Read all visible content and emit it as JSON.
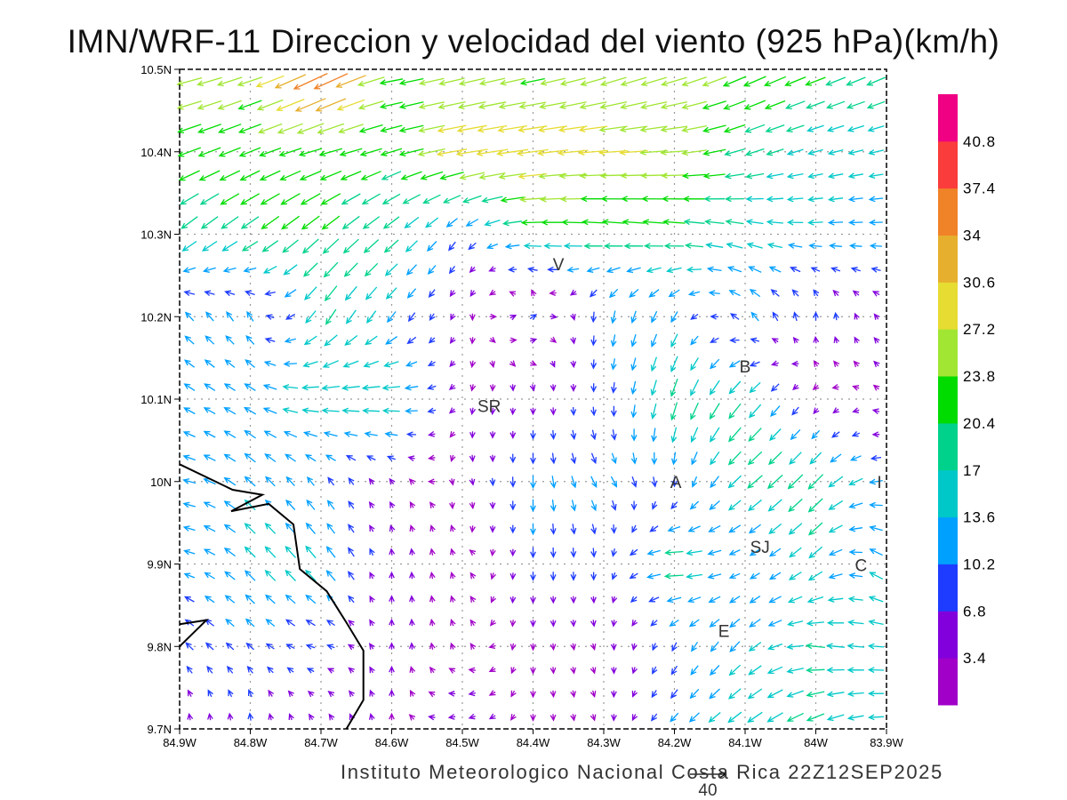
{
  "chart_data": {
    "type": "vector-field",
    "title": "IMN/WRF-11 Direccion y velocidad del viento (925 hPa)(km/h)",
    "footer": "Instituto Meteorologico Nacional Costa Rica  22Z12SEP2025",
    "reference_vector": {
      "label": "40",
      "value": 40
    },
    "units": "km/h",
    "xlim": [
      -84.9,
      -83.9
    ],
    "ylim": [
      9.7,
      10.5
    ],
    "x_ticks": [
      {
        "value": -84.9,
        "label": "84.9W"
      },
      {
        "value": -84.8,
        "label": "84.8W"
      },
      {
        "value": -84.7,
        "label": "84.7W"
      },
      {
        "value": -84.6,
        "label": "84.6W"
      },
      {
        "value": -84.5,
        "label": "84.5W"
      },
      {
        "value": -84.4,
        "label": "84.4W"
      },
      {
        "value": -84.3,
        "label": "84.3W"
      },
      {
        "value": -84.2,
        "label": "84.2W"
      },
      {
        "value": -84.1,
        "label": "84.1W"
      },
      {
        "value": -84.0,
        "label": "84W"
      },
      {
        "value": -83.9,
        "label": "83.9W"
      }
    ],
    "y_ticks": [
      {
        "value": 10.5,
        "label": "10.5N"
      },
      {
        "value": 10.4,
        "label": "10.4N"
      },
      {
        "value": 10.3,
        "label": "10.3N"
      },
      {
        "value": 10.2,
        "label": "10.2N"
      },
      {
        "value": 10.1,
        "label": "10.1N"
      },
      {
        "value": 10.0,
        "label": "10N"
      },
      {
        "value": 9.9,
        "label": "9.9N"
      },
      {
        "value": 9.8,
        "label": "9.8N"
      },
      {
        "value": 9.7,
        "label": "9.7N"
      }
    ],
    "grid": true,
    "colorbar": {
      "placement": "right",
      "levels": [
        "3.4",
        "6.8",
        "10.2",
        "13.6",
        "17",
        "20.4",
        "23.8",
        "27.2",
        "30.6",
        "34",
        "37.4",
        "40.8"
      ],
      "colors": [
        "#a000c8",
        "#8200dc",
        "#1e3cff",
        "#00a0ff",
        "#00c8c8",
        "#00d28c",
        "#00dc00",
        "#a0e632",
        "#e6dc32",
        "#e6af2d",
        "#f08228",
        "#fa3c3c",
        "#f00082"
      ]
    },
    "cities": [
      {
        "label": "V",
        "lon": -84.364,
        "lat": 10.264
      },
      {
        "label": "B",
        "lon": -84.1,
        "lat": 10.14
      },
      {
        "label": "SR",
        "lon": -84.462,
        "lat": 10.092
      },
      {
        "label": "A",
        "lon": -84.198,
        "lat": 10.0
      },
      {
        "label": "I",
        "lon": -83.91,
        "lat": 10.0
      },
      {
        "label": "SJ",
        "lon": -84.079,
        "lat": 9.921
      },
      {
        "label": "C",
        "lon": -83.936,
        "lat": 9.899
      },
      {
        "label": "E",
        "lon": -84.13,
        "lat": 9.819
      }
    ],
    "coastline": [
      [
        [
          -84.9,
          10.021
        ],
        [
          -84.825,
          9.99
        ],
        [
          -84.783,
          9.984
        ],
        [
          -84.827,
          9.964
        ],
        [
          -84.774,
          9.973
        ],
        [
          -84.739,
          9.948
        ],
        [
          -84.73,
          9.894
        ],
        [
          -84.692,
          9.867
        ],
        [
          -84.664,
          9.829
        ],
        [
          -84.64,
          9.795
        ],
        [
          -84.64,
          9.735
        ],
        [
          -84.664,
          9.7
        ]
      ],
      [
        [
          -84.9,
          9.827
        ],
        [
          -84.862,
          9.832
        ],
        [
          -84.9,
          9.8
        ]
      ]
    ],
    "wind_field": {
      "description": "u,v components (km/h) on a 0.1 degree grid; rows from lat 10.5 down to 9.7, columns from lon -84.9 to -83.9",
      "lats": [
        10.5,
        10.4,
        10.3,
        10.2,
        10.1,
        10.0,
        9.9,
        9.8,
        9.7
      ],
      "lons": [
        -84.9,
        -84.8,
        -84.7,
        -84.6,
        -84.5,
        -84.4,
        -84.3,
        -84.2,
        -84.1,
        -84.0,
        -83.9
      ],
      "uv": [
        [
          [
            -24,
            -6
          ],
          [
            -24,
            -8
          ],
          [
            -36,
            -18
          ],
          [
            -22,
            -4
          ],
          [
            -24,
            -6
          ],
          [
            -22,
            -5
          ],
          [
            -24,
            -8
          ],
          [
            -24,
            -8
          ],
          [
            -22,
            -10
          ],
          [
            -20,
            -8
          ],
          [
            -18,
            -8
          ]
        ],
        [
          [
            -22,
            -8
          ],
          [
            -20,
            -8
          ],
          [
            -22,
            -6
          ],
          [
            -20,
            -6
          ],
          [
            -30,
            -5
          ],
          [
            -30,
            -4
          ],
          [
            -28,
            -2
          ],
          [
            -26,
            -2
          ],
          [
            -18,
            -6
          ],
          [
            -14,
            -4
          ],
          [
            -14,
            -3
          ]
        ],
        [
          [
            -14,
            -12
          ],
          [
            -16,
            -12
          ],
          [
            -16,
            -14
          ],
          [
            -14,
            -12
          ],
          [
            -6,
            -8
          ],
          [
            -20,
            0
          ],
          [
            -20,
            2
          ],
          [
            -20,
            2
          ],
          [
            -16,
            4
          ],
          [
            -14,
            0
          ],
          [
            -12,
            0
          ]
        ],
        [
          [
            -8,
            8
          ],
          [
            -6,
            9
          ],
          [
            -10,
            -15
          ],
          [
            -8,
            -10
          ],
          [
            -1,
            -3
          ],
          [
            6,
            4
          ],
          [
            -2,
            -12
          ],
          [
            -6,
            -10
          ],
          [
            -8,
            8
          ],
          [
            0,
            8
          ],
          [
            -4,
            4
          ]
        ],
        [
          [
            -10,
            6
          ],
          [
            -11,
            6
          ],
          [
            -18,
            0
          ],
          [
            -18,
            0
          ],
          [
            -1,
            -3
          ],
          [
            0,
            -5
          ],
          [
            0,
            -8
          ],
          [
            -6,
            -18
          ],
          [
            -12,
            -14
          ],
          [
            -2,
            -3
          ],
          [
            -2,
            2
          ]
        ],
        [
          [
            -12,
            2
          ],
          [
            -10,
            9
          ],
          [
            -6,
            8
          ],
          [
            -3,
            4
          ],
          [
            1,
            -3
          ],
          [
            0,
            -12
          ],
          [
            6,
            -10
          ],
          [
            0,
            -9
          ],
          [
            -14,
            -12
          ],
          [
            -14,
            -14
          ],
          [
            -12,
            0
          ]
        ],
        [
          [
            -10,
            2
          ],
          [
            -10,
            10
          ],
          [
            -10,
            12
          ],
          [
            0,
            4
          ],
          [
            -1,
            3
          ],
          [
            0,
            -9
          ],
          [
            0,
            -8
          ],
          [
            -20,
            0
          ],
          [
            -8,
            -4
          ],
          [
            -12,
            -10
          ],
          [
            -12,
            10
          ]
        ],
        [
          [
            -7,
            7
          ],
          [
            -7,
            6
          ],
          [
            -8,
            2
          ],
          [
            0,
            4
          ],
          [
            -1,
            2
          ],
          [
            0,
            -3
          ],
          [
            1,
            -3
          ],
          [
            -4,
            -8
          ],
          [
            -10,
            -10
          ],
          [
            -18,
            2
          ],
          [
            -14,
            1
          ]
        ],
        [
          [
            0,
            5
          ],
          [
            0,
            7
          ],
          [
            -2,
            4
          ],
          [
            0,
            3
          ],
          [
            -7,
            -2
          ],
          [
            0,
            -3
          ],
          [
            1,
            -3
          ],
          [
            -8,
            -8
          ],
          [
            -14,
            -10
          ],
          [
            -16,
            -8
          ],
          [
            -14,
            0
          ]
        ]
      ]
    }
  }
}
